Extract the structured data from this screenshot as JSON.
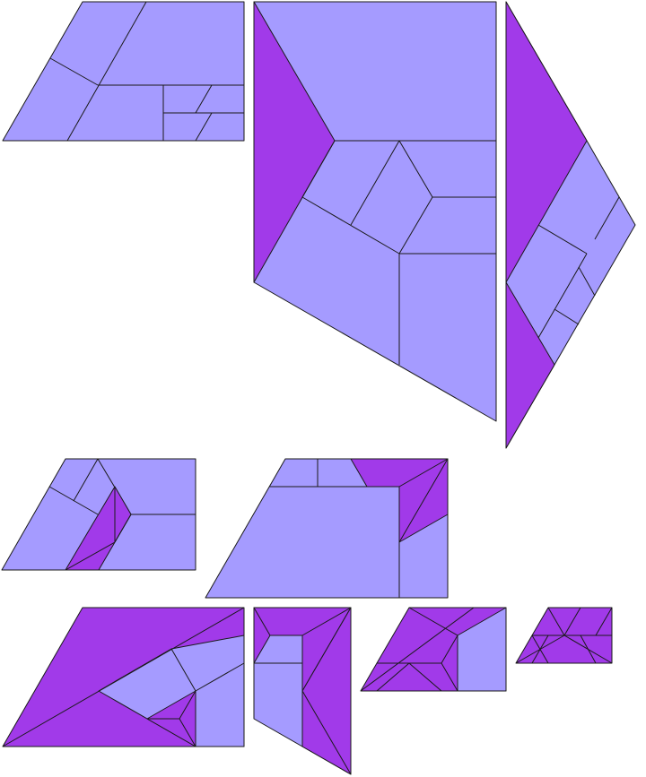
{
  "colors": {
    "light": "#a59bff",
    "dark": "#a13ae9",
    "stroke": "#1a1a1a",
    "background": "#ffffff"
  },
  "figure": {
    "description_kind": "tiling",
    "tile_kinds": [
      "light",
      "dark"
    ],
    "pieces": 9
  }
}
